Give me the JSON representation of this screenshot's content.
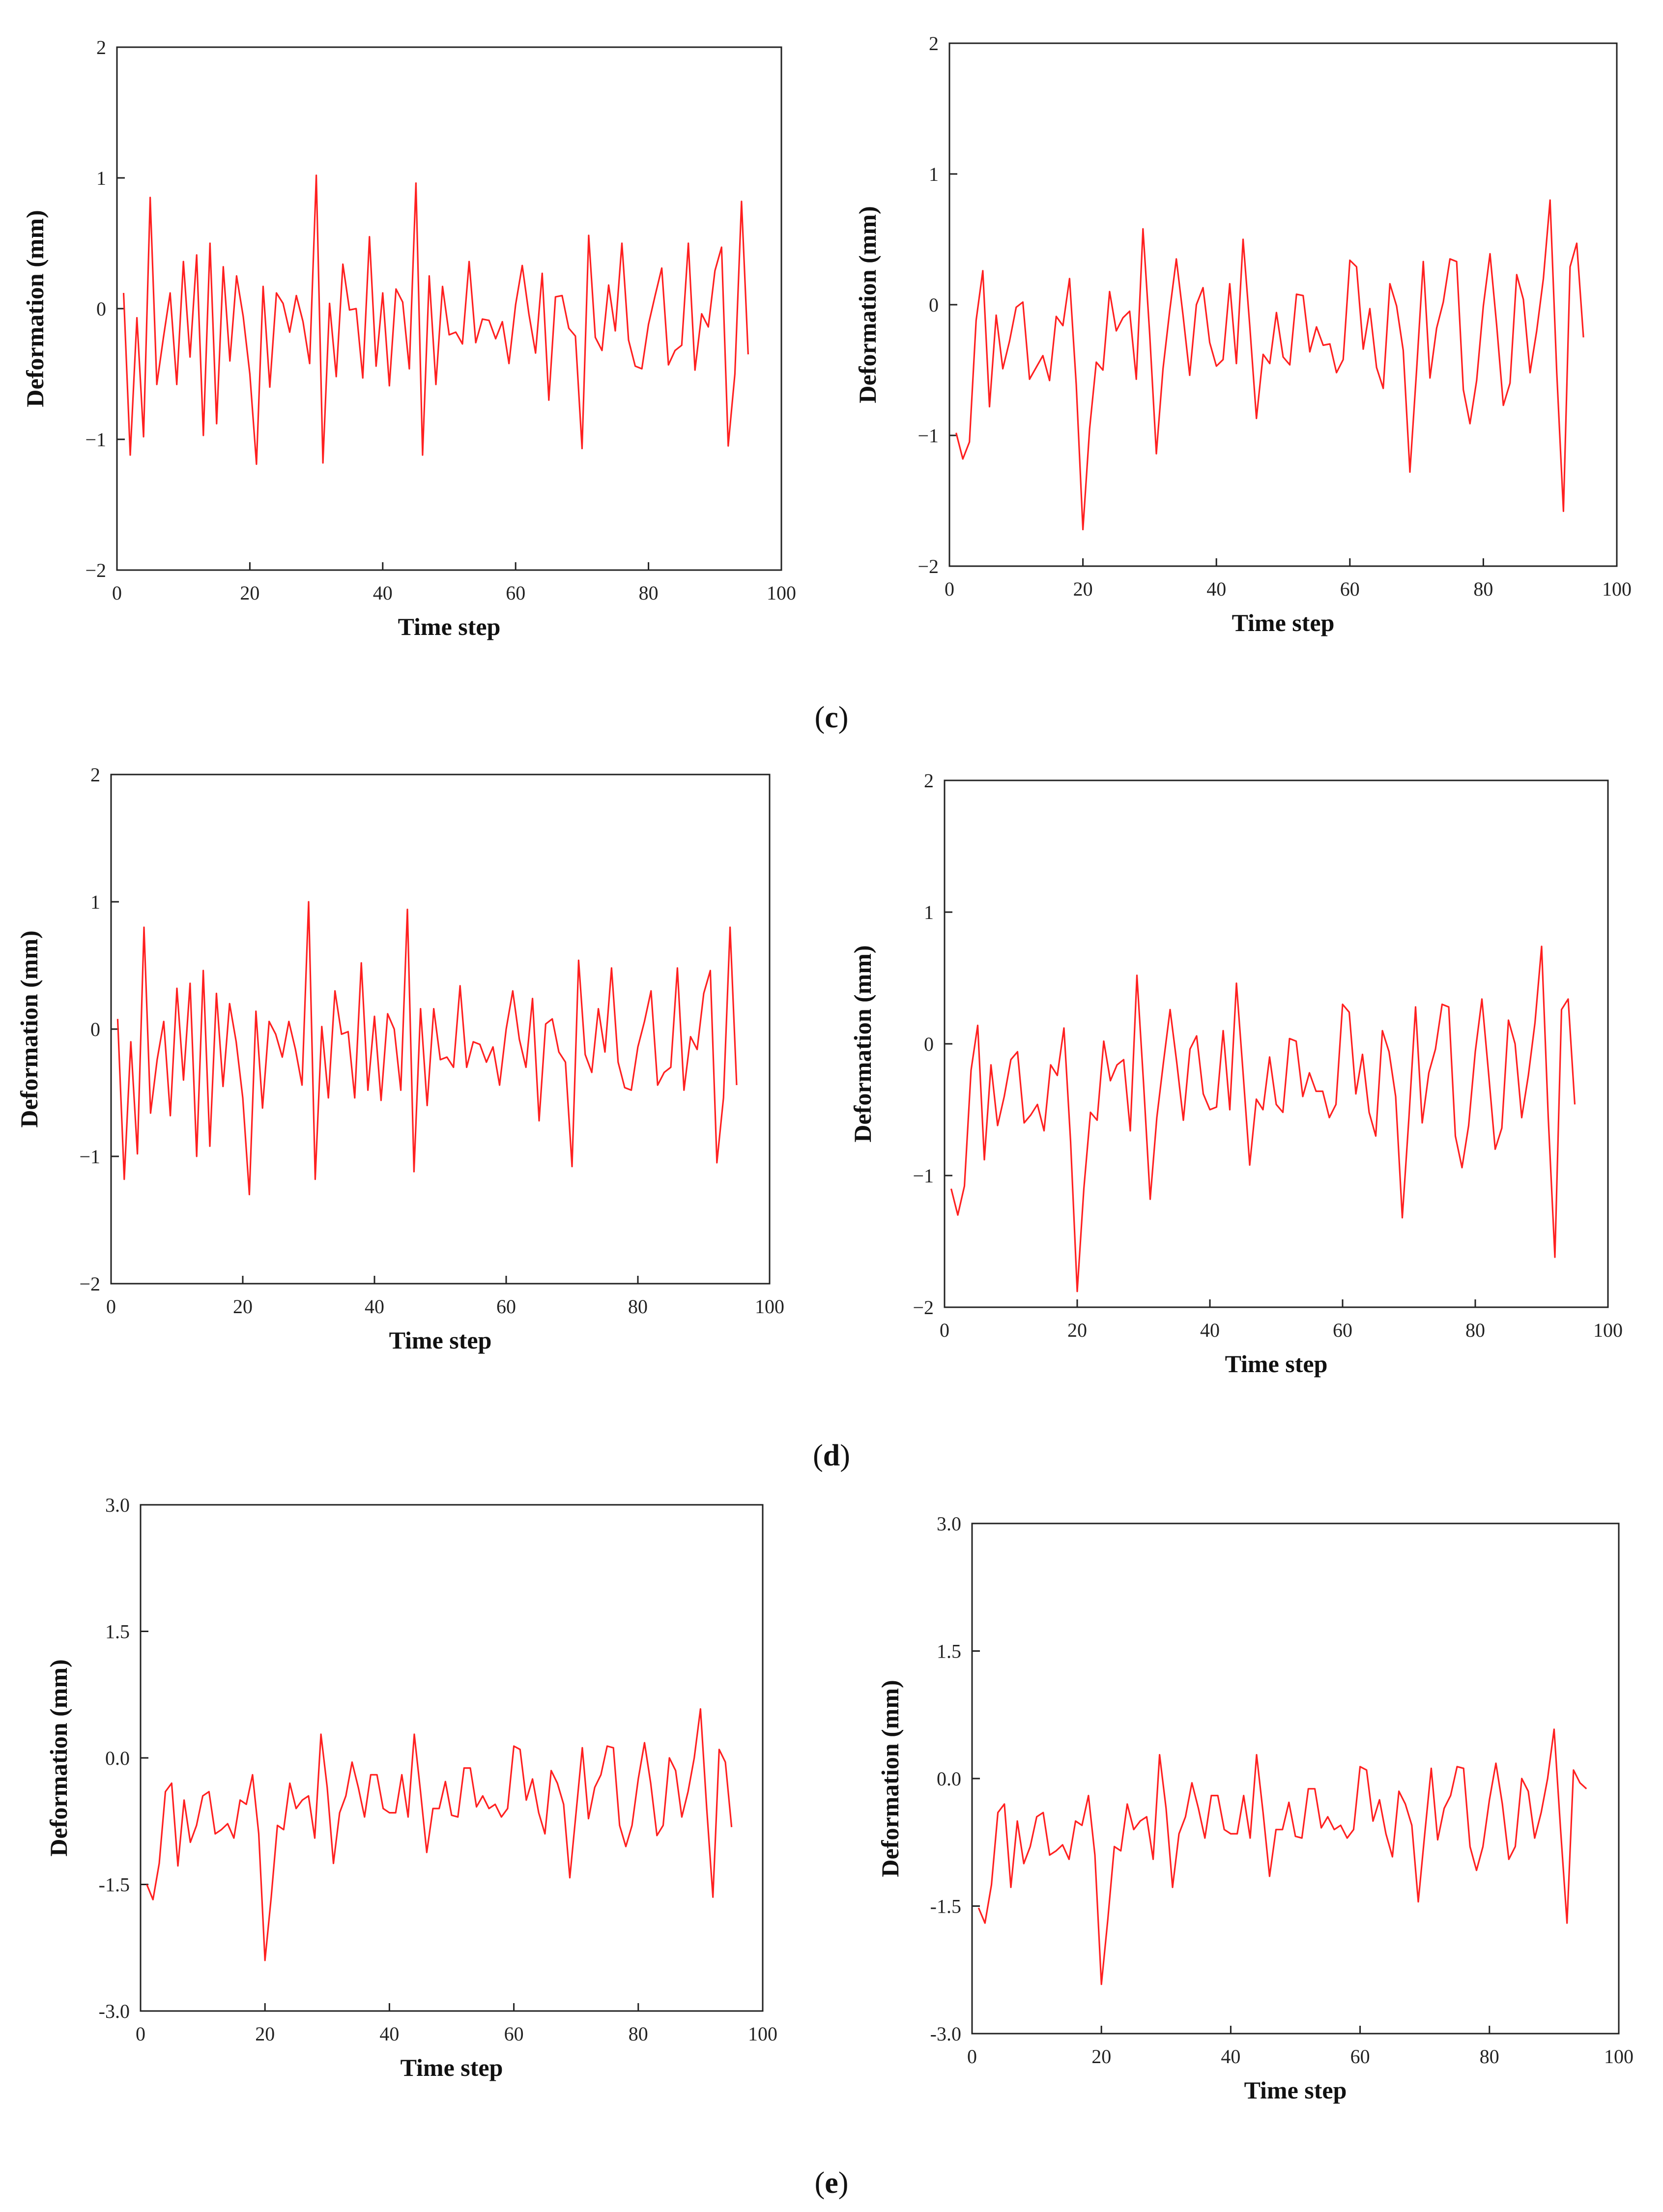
{
  "figure": {
    "line_color": "#ff2020",
    "axis_color": "#222222",
    "captions": [
      {
        "open": "(",
        "label": "c",
        "close": ")"
      },
      {
        "open": "(",
        "label": "d",
        "close": ")"
      },
      {
        "open": "(",
        "label": "e",
        "close": ")"
      }
    ]
  },
  "chart_data": [
    {
      "type": "line",
      "panel": "c",
      "position": "left",
      "xlabel": "Time step",
      "ylabel": "Deformation (mm)",
      "xlim": [
        0,
        100
      ],
      "ylim": [
        -2,
        2
      ],
      "xticks": [
        "0",
        "20",
        "40",
        "60",
        "80",
        "100"
      ],
      "yticks": [
        "−2",
        "−1",
        "0",
        "1",
        "2"
      ],
      "x_start": 1,
      "series": [
        {
          "name": "deformation",
          "values": [
            0.12,
            -1.12,
            -0.07,
            -0.98,
            0.85,
            -0.58,
            -0.22,
            0.12,
            -0.58,
            0.36,
            -0.37,
            0.41,
            -0.97,
            0.5,
            -0.88,
            0.32,
            -0.4,
            0.25,
            -0.06,
            -0.5,
            -1.19,
            0.17,
            -0.6,
            0.12,
            0.04,
            -0.18,
            0.1,
            -0.1,
            -0.42,
            1.02,
            -1.18,
            0.04,
            -0.52,
            0.34,
            -0.01,
            0.0,
            -0.53,
            0.55,
            -0.44,
            0.12,
            -0.59,
            0.15,
            0.05,
            -0.46,
            0.96,
            -1.12,
            0.25,
            -0.58,
            0.17,
            -0.2,
            -0.18,
            -0.27,
            0.36,
            -0.26,
            -0.08,
            -0.09,
            -0.23,
            -0.1,
            -0.42,
            0.03,
            0.33,
            -0.04,
            -0.34,
            0.27,
            -0.7,
            0.09,
            0.1,
            -0.15,
            -0.21,
            -1.07,
            0.56,
            -0.22,
            -0.32,
            0.18,
            -0.17,
            0.5,
            -0.24,
            -0.44,
            -0.46,
            -0.12,
            0.1,
            0.31,
            -0.43,
            -0.32,
            -0.28,
            0.5,
            -0.47,
            -0.04,
            -0.14,
            0.29,
            0.47,
            -1.05,
            -0.5,
            0.82,
            -0.35
          ]
        }
      ]
    },
    {
      "type": "line",
      "panel": "c",
      "position": "right",
      "xlabel": "Time step",
      "ylabel": "Deformation (mm)",
      "xlim": [
        0,
        100
      ],
      "ylim": [
        -2,
        2
      ],
      "xticks": [
        "0",
        "20",
        "40",
        "60",
        "80",
        "100"
      ],
      "yticks": [
        "−2",
        "−1",
        "0",
        "1",
        "2"
      ],
      "x_start": 1,
      "series": [
        {
          "name": "deformation",
          "values": [
            -0.98,
            -1.18,
            -1.05,
            -0.12,
            0.26,
            -0.78,
            -0.08,
            -0.49,
            -0.28,
            -0.02,
            0.02,
            -0.57,
            -0.48,
            -0.39,
            -0.58,
            -0.09,
            -0.16,
            0.2,
            -0.61,
            -1.72,
            -0.95,
            -0.44,
            -0.5,
            0.1,
            -0.2,
            -0.1,
            -0.05,
            -0.57,
            0.58,
            -0.22,
            -1.14,
            -0.49,
            -0.05,
            0.35,
            -0.08,
            -0.54,
            0.0,
            0.13,
            -0.29,
            -0.47,
            -0.42,
            0.16,
            -0.45,
            0.5,
            -0.16,
            -0.87,
            -0.38,
            -0.45,
            -0.06,
            -0.4,
            -0.46,
            0.08,
            0.07,
            -0.36,
            -0.17,
            -0.31,
            -0.3,
            -0.52,
            -0.42,
            0.34,
            0.29,
            -0.34,
            -0.03,
            -0.48,
            -0.64,
            0.16,
            -0.01,
            -0.35,
            -1.28,
            -0.5,
            0.33,
            -0.56,
            -0.18,
            0.02,
            0.35,
            0.33,
            -0.65,
            -0.91,
            -0.58,
            -0.01,
            0.39,
            -0.16,
            -0.77,
            -0.6,
            0.23,
            0.04,
            -0.52,
            -0.2,
            0.2,
            0.8,
            -0.52,
            -1.58,
            0.29,
            0.47,
            -0.25
          ]
        }
      ]
    },
    {
      "type": "line",
      "panel": "d",
      "position": "left",
      "xlabel": "Time step",
      "ylabel": "Deformation (mm)",
      "xlim": [
        0,
        100
      ],
      "ylim": [
        -2,
        2
      ],
      "xticks": [
        "0",
        "20",
        "40",
        "60",
        "80",
        "100"
      ],
      "yticks": [
        "−2",
        "−1",
        "0",
        "1",
        "2"
      ],
      "x_start": 1,
      "series": [
        {
          "name": "deformation",
          "values": [
            0.08,
            -1.18,
            -0.1,
            -0.98,
            0.8,
            -0.66,
            -0.24,
            0.06,
            -0.68,
            0.32,
            -0.4,
            0.36,
            -1.0,
            0.46,
            -0.92,
            0.28,
            -0.45,
            0.2,
            -0.1,
            -0.54,
            -1.3,
            0.14,
            -0.62,
            0.06,
            -0.04,
            -0.22,
            0.06,
            -0.16,
            -0.44,
            1.0,
            -1.18,
            0.02,
            -0.54,
            0.3,
            -0.04,
            -0.02,
            -0.54,
            0.52,
            -0.48,
            0.1,
            -0.56,
            0.12,
            0.0,
            -0.48,
            0.94,
            -1.12,
            0.16,
            -0.6,
            0.16,
            -0.24,
            -0.22,
            -0.3,
            0.34,
            -0.3,
            -0.1,
            -0.12,
            -0.26,
            -0.14,
            -0.44,
            0.0,
            0.3,
            -0.08,
            -0.3,
            0.24,
            -0.72,
            0.04,
            0.08,
            -0.18,
            -0.26,
            -1.08,
            0.54,
            -0.2,
            -0.34,
            0.16,
            -0.18,
            0.48,
            -0.26,
            -0.46,
            -0.48,
            -0.14,
            0.06,
            0.3,
            -0.44,
            -0.34,
            -0.3,
            0.48,
            -0.48,
            -0.06,
            -0.16,
            0.28,
            0.46,
            -1.05,
            -0.54,
            0.8,
            -0.44
          ]
        }
      ]
    },
    {
      "type": "line",
      "panel": "d",
      "position": "right",
      "xlabel": "Time step",
      "ylabel": "Deformation (mm)",
      "xlim": [
        0,
        100
      ],
      "ylim": [
        -2,
        2
      ],
      "xticks": [
        "0",
        "20",
        "40",
        "60",
        "80",
        "100"
      ],
      "yticks": [
        "−2",
        "−1",
        "0",
        "1",
        "2"
      ],
      "x_start": 1,
      "series": [
        {
          "name": "deformation",
          "values": [
            -1.1,
            -1.3,
            -1.08,
            -0.2,
            0.14,
            -0.88,
            -0.16,
            -0.62,
            -0.4,
            -0.12,
            -0.06,
            -0.6,
            -0.54,
            -0.46,
            -0.66,
            -0.16,
            -0.24,
            0.12,
            -0.74,
            -1.88,
            -1.1,
            -0.52,
            -0.58,
            0.02,
            -0.28,
            -0.16,
            -0.12,
            -0.66,
            0.52,
            -0.3,
            -1.18,
            -0.56,
            -0.14,
            0.26,
            -0.14,
            -0.58,
            -0.04,
            0.06,
            -0.38,
            -0.5,
            -0.48,
            0.1,
            -0.5,
            0.46,
            -0.22,
            -0.92,
            -0.42,
            -0.5,
            -0.1,
            -0.46,
            -0.52,
            0.04,
            0.02,
            -0.4,
            -0.22,
            -0.36,
            -0.36,
            -0.56,
            -0.46,
            0.3,
            0.24,
            -0.38,
            -0.08,
            -0.52,
            -0.7,
            0.1,
            -0.06,
            -0.4,
            -1.32,
            -0.56,
            0.28,
            -0.6,
            -0.22,
            -0.04,
            0.3,
            0.28,
            -0.7,
            -0.94,
            -0.62,
            -0.06,
            0.34,
            -0.22,
            -0.8,
            -0.64,
            0.18,
            0.0,
            -0.56,
            -0.24,
            0.16,
            0.74,
            -0.56,
            -1.62,
            0.26,
            0.34,
            -0.46
          ]
        }
      ]
    },
    {
      "type": "line",
      "panel": "e",
      "position": "left",
      "xlabel": "Time step",
      "ylabel": "Deformation (mm)",
      "xlim": [
        0,
        100
      ],
      "ylim": [
        -3.0,
        3.0
      ],
      "xticks": [
        "0",
        "20",
        "40",
        "60",
        "80",
        "100"
      ],
      "yticks": [
        "-3.0",
        "-1.5",
        "0.0",
        "1.5",
        "3.0"
      ],
      "x_start": 1,
      "series": [
        {
          "name": "deformation",
          "values": [
            -1.5,
            -1.68,
            -1.25,
            -0.4,
            -0.3,
            -1.28,
            -0.5,
            -1.0,
            -0.8,
            -0.45,
            -0.4,
            -0.9,
            -0.85,
            -0.78,
            -0.95,
            -0.5,
            -0.55,
            -0.2,
            -0.9,
            -2.4,
            -1.65,
            -0.8,
            -0.85,
            -0.3,
            -0.6,
            -0.5,
            -0.45,
            -0.95,
            0.28,
            -0.35,
            -1.25,
            -0.65,
            -0.45,
            -0.05,
            -0.35,
            -0.7,
            -0.2,
            -0.2,
            -0.6,
            -0.65,
            -0.65,
            -0.2,
            -0.7,
            0.28,
            -0.4,
            -1.12,
            -0.6,
            -0.6,
            -0.28,
            -0.68,
            -0.7,
            -0.12,
            -0.12,
            -0.58,
            -0.45,
            -0.6,
            -0.55,
            -0.7,
            -0.6,
            0.14,
            0.1,
            -0.5,
            -0.25,
            -0.65,
            -0.9,
            -0.15,
            -0.3,
            -0.55,
            -1.42,
            -0.65,
            0.12,
            -0.72,
            -0.35,
            -0.2,
            0.14,
            0.12,
            -0.8,
            -1.05,
            -0.8,
            -0.25,
            0.18,
            -0.3,
            -0.92,
            -0.8,
            0.0,
            -0.15,
            -0.7,
            -0.4,
            0.0,
            0.58,
            -0.6,
            -1.65,
            0.1,
            -0.05,
            -0.82
          ]
        }
      ]
    },
    {
      "type": "line",
      "panel": "e",
      "position": "right",
      "xlabel": "Time step",
      "ylabel": "Deformation (mm)",
      "xlim": [
        0,
        100
      ],
      "ylim": [
        -3.0,
        3.0
      ],
      "xticks": [
        "0",
        "20",
        "40",
        "60",
        "80",
        "100"
      ],
      "yticks": [
        "-3.0",
        "-1.5",
        "0.0",
        "1.5",
        "3.0"
      ],
      "x_start": 1,
      "series": [
        {
          "name": "deformation",
          "values": [
            -1.52,
            -1.7,
            -1.25,
            -0.4,
            -0.3,
            -1.28,
            -0.5,
            -1.0,
            -0.8,
            -0.45,
            -0.4,
            -0.9,
            -0.85,
            -0.78,
            -0.95,
            -0.5,
            -0.55,
            -0.2,
            -0.9,
            -2.42,
            -1.65,
            -0.8,
            -0.85,
            -0.3,
            -0.6,
            -0.5,
            -0.45,
            -0.95,
            0.28,
            -0.35,
            -1.28,
            -0.65,
            -0.45,
            -0.05,
            -0.35,
            -0.7,
            -0.2,
            -0.2,
            -0.6,
            -0.65,
            -0.65,
            -0.2,
            -0.7,
            0.28,
            -0.4,
            -1.15,
            -0.6,
            -0.6,
            -0.28,
            -0.68,
            -0.7,
            -0.12,
            -0.12,
            -0.58,
            -0.45,
            -0.6,
            -0.55,
            -0.7,
            -0.6,
            0.14,
            0.1,
            -0.5,
            -0.25,
            -0.65,
            -0.92,
            -0.15,
            -0.3,
            -0.55,
            -1.45,
            -0.65,
            0.12,
            -0.72,
            -0.35,
            -0.2,
            0.14,
            0.12,
            -0.8,
            -1.08,
            -0.8,
            -0.25,
            0.18,
            -0.3,
            -0.95,
            -0.8,
            0.0,
            -0.15,
            -0.7,
            -0.4,
            0.0,
            0.58,
            -0.6,
            -1.7,
            0.1,
            -0.05,
            -0.12
          ]
        }
      ]
    }
  ]
}
